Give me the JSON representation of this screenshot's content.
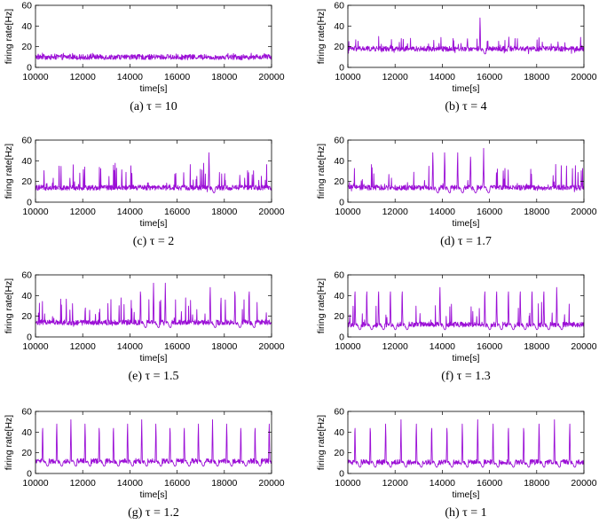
{
  "colors": {
    "series": "#9b0fd6",
    "axis": "#000000"
  },
  "chart_data": [
    {
      "type": "line",
      "caption": "(a) τ = 10",
      "xlabel": "time[s]",
      "ylabel": "firing rate[Hz]",
      "xlim": [
        10000,
        20000
      ],
      "ylim": [
        0,
        60
      ],
      "xticks": [
        "10000",
        "12000",
        "14000",
        "16000",
        "18000",
        "20000"
      ],
      "yticks": [
        "0",
        "20",
        "40",
        "60"
      ],
      "baseline": 10,
      "noise": [
        7,
        14
      ],
      "spikes": [],
      "series": [
        {
          "name": "firing rate"
        }
      ]
    },
    {
      "type": "line",
      "caption": "(b) τ = 4",
      "xlabel": "time[s]",
      "ylabel": "firing rate[Hz]",
      "xlim": [
        10000,
        20000
      ],
      "ylim": [
        0,
        60
      ],
      "xticks": [
        "10000",
        "12000",
        "14000",
        "16000",
        "18000",
        "20000"
      ],
      "yticks": [
        "0",
        "20",
        "40",
        "60"
      ],
      "baseline": 18,
      "noise": [
        13,
        30
      ],
      "spikes": [
        15600
      ],
      "series": [
        {
          "name": "firing rate"
        }
      ]
    },
    {
      "type": "line",
      "caption": "(c) τ = 2",
      "xlabel": "time[s]",
      "ylabel": "firing rate[Hz]",
      "xlim": [
        10000,
        20000
      ],
      "ylim": [
        0,
        60
      ],
      "xticks": [
        "10000",
        "12000",
        "14000",
        "16000",
        "18000",
        "20000"
      ],
      "yticks": [
        "0",
        "20",
        "40",
        "60"
      ],
      "baseline": 14,
      "noise": [
        10,
        38
      ],
      "spikes": [
        17350
      ],
      "series": [
        {
          "name": "firing rate"
        }
      ]
    },
    {
      "type": "line",
      "caption": "(d) τ = 1.7",
      "xlabel": "time[s]",
      "ylabel": "firing rate[Hz]",
      "xlim": [
        10000,
        20000
      ],
      "ylim": [
        0,
        60
      ],
      "xticks": [
        "10000",
        "12000",
        "14000",
        "16000",
        "18000",
        "20000"
      ],
      "yticks": [
        "0",
        "20",
        "40",
        "60"
      ],
      "baseline": 14,
      "noise": [
        10,
        38
      ],
      "spikes": [
        13600,
        14100,
        14650,
        15200,
        15750
      ],
      "series": [
        {
          "name": "firing rate"
        }
      ]
    },
    {
      "type": "line",
      "caption": "(e) τ = 1.5",
      "xlabel": "time[s]",
      "ylabel": "firing rate[Hz]",
      "xlim": [
        10000,
        20000
      ],
      "ylim": [
        0,
        60
      ],
      "xticks": [
        "10000",
        "12000",
        "14000",
        "16000",
        "18000",
        "20000"
      ],
      "yticks": [
        "0",
        "20",
        "40",
        "60"
      ],
      "baseline": 14,
      "noise": [
        10,
        38
      ],
      "spikes": [
        14450,
        15000,
        15500,
        17400,
        18450,
        19050
      ],
      "series": [
        {
          "name": "firing rate"
        }
      ]
    },
    {
      "type": "line",
      "caption": "(f) τ = 1.3",
      "xlabel": "time[s]",
      "ylabel": "firing rate[Hz]",
      "xlim": [
        10000,
        20000
      ],
      "ylim": [
        0,
        60
      ],
      "xticks": [
        "10000",
        "12000",
        "14000",
        "16000",
        "18000",
        "20000"
      ],
      "yticks": [
        "0",
        "20",
        "40",
        "60"
      ],
      "baseline": 12,
      "noise": [
        9,
        34
      ],
      "spikes": [
        10300,
        10800,
        11300,
        11800,
        12300,
        13900,
        15800,
        16300,
        16800,
        17300,
        17800,
        18300,
        18850
      ],
      "series": [
        {
          "name": "firing rate"
        }
      ]
    },
    {
      "type": "line",
      "caption": "(g) τ = 1.2",
      "xlabel": "time[s]",
      "ylabel": "firing rate[Hz]",
      "xlim": [
        10000,
        20000
      ],
      "ylim": [
        0,
        60
      ],
      "xticks": [
        "10000",
        "12000",
        "14000",
        "16000",
        "18000",
        "20000"
      ],
      "yticks": [
        "0",
        "20",
        "40",
        "60"
      ],
      "baseline": 12,
      "noise": [
        10,
        15
      ],
      "spikes": [
        10300,
        10900,
        11500,
        12100,
        12700,
        13300,
        13900,
        14500,
        15100,
        15700,
        16300,
        16900,
        17500,
        18100,
        18700,
        19300,
        19900
      ],
      "series": [
        {
          "name": "firing rate"
        }
      ]
    },
    {
      "type": "line",
      "caption": "(h) τ = 1",
      "xlabel": "time[s]",
      "ylabel": "firing rate[Hz]",
      "xlim": [
        10000,
        20000
      ],
      "ylim": [
        0,
        60
      ],
      "xticks": [
        "10000",
        "12000",
        "14000",
        "16000",
        "18000",
        "20000"
      ],
      "yticks": [
        "0",
        "20",
        "40",
        "60"
      ],
      "baseline": 11,
      "noise": [
        9,
        13
      ],
      "spikes": [
        10300,
        10950,
        11600,
        12250,
        12900,
        13550,
        14200,
        14850,
        15500,
        16150,
        16800,
        17450,
        18100,
        18750,
        19400
      ],
      "series": [
        {
          "name": "firing rate"
        }
      ]
    }
  ]
}
